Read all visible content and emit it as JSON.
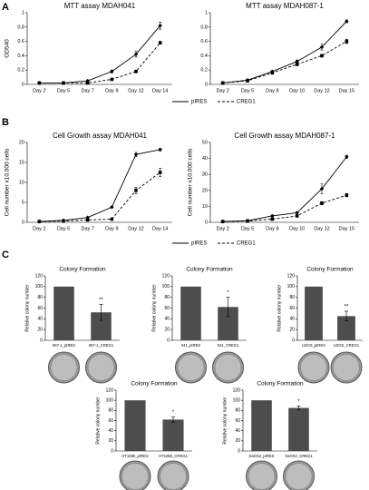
{
  "panel_labels": [
    "A",
    "B",
    "C"
  ],
  "chart_data": [
    {
      "type": "line",
      "title": "MTT assay MDAH041",
      "ylabel": "OD540",
      "categories": [
        "Day 2",
        "Day 5",
        "Day 7",
        "Day 9",
        "Day 12",
        "Day 14"
      ],
      "series": [
        {
          "name": "pIRES",
          "color": "#000000",
          "line_style": "solid",
          "marker": "diamond",
          "values": [
            0.02,
            0.02,
            0.05,
            0.18,
            0.42,
            0.82
          ],
          "errors": [
            0,
            0,
            0,
            0.02,
            0.04,
            0.05
          ]
        },
        {
          "name": "CREG1",
          "color": "#000000",
          "line_style": "dashed",
          "marker": "square",
          "values": [
            0.02,
            0.02,
            0.02,
            0.07,
            0.18,
            0.58
          ],
          "errors": [
            0,
            0,
            0,
            0.01,
            0.02,
            0.02
          ]
        }
      ],
      "ylim": [
        0,
        1
      ],
      "yticks": [
        0,
        0.2,
        0.4,
        0.6,
        0.8,
        1
      ],
      "legend": "bottom"
    },
    {
      "type": "line",
      "title": "MTT assay MDAH087-1",
      "categories": [
        "Day 2",
        "Day 5",
        "Day 8",
        "Day 10",
        "Day 12",
        "Day 15"
      ],
      "series": [
        {
          "name": "pIRES",
          "color": "#000000",
          "line_style": "solid",
          "marker": "diamond",
          "values": [
            0.02,
            0.06,
            0.18,
            0.32,
            0.52,
            0.88
          ],
          "errors": [
            0,
            0,
            0.01,
            0.02,
            0.04,
            0.02
          ]
        },
        {
          "name": "CREG1",
          "color": "#000000",
          "line_style": "dashed",
          "marker": "square",
          "values": [
            0.02,
            0.05,
            0.16,
            0.28,
            0.4,
            0.6
          ],
          "errors": [
            0,
            0,
            0.01,
            0.02,
            0.02,
            0.03
          ]
        }
      ],
      "ylim": [
        0,
        1
      ],
      "yticks": [
        0,
        0.2,
        0.4,
        0.6,
        0.8,
        1
      ]
    },
    {
      "type": "line",
      "title": "Cell Growth assay MDAH041",
      "ylabel": "Cell number x10,000 cells",
      "categories": [
        "Day 2",
        "Day 5",
        "Day 7",
        "Day 9",
        "Day 12",
        "Day 14"
      ],
      "series": [
        {
          "name": "pIRES",
          "color": "#000000",
          "line_style": "solid",
          "marker": "diamond",
          "values": [
            0.2,
            0.5,
            1.2,
            3.8,
            17,
            18.2
          ],
          "errors": [
            0,
            0,
            0.1,
            0.2,
            0.5,
            0.3
          ]
        },
        {
          "name": "CREG1",
          "color": "#000000",
          "line_style": "dashed",
          "marker": "square",
          "values": [
            0.2,
            0.3,
            0.6,
            0.8,
            8,
            12.5
          ],
          "errors": [
            0,
            0,
            0.1,
            0.1,
            0.8,
            1
          ]
        }
      ],
      "ylim": [
        0,
        20
      ],
      "yticks": [
        0,
        5,
        10,
        15,
        20
      ],
      "legend": "bottom"
    },
    {
      "type": "line",
      "title": "Cell Growth assay MDAH087-1",
      "ylabel": "Cell number x10,000 cells",
      "categories": [
        "Day 2",
        "Day 5",
        "Day 8",
        "Day 10",
        "Day 12",
        "Day 15"
      ],
      "series": [
        {
          "name": "pIRES",
          "color": "#000000",
          "line_style": "solid",
          "marker": "diamond",
          "values": [
            0.5,
            1,
            4,
            6,
            21,
            41
          ],
          "errors": [
            0,
            0,
            0.5,
            0.5,
            3,
            1
          ]
        },
        {
          "name": "CREG1",
          "color": "#000000",
          "line_style": "dashed",
          "marker": "square",
          "values": [
            0.5,
            0.8,
            2,
            4,
            12,
            17
          ],
          "errors": [
            0,
            0,
            0.3,
            0.5,
            1,
            1
          ]
        }
      ],
      "ylim": [
        0,
        50
      ],
      "yticks": [
        0,
        10,
        20,
        30,
        40,
        50
      ]
    },
    {
      "type": "bar",
      "title": "Colony Formation",
      "ylabel": "Relative colony number",
      "color": "#4d4d4d",
      "categories": [
        "087-1_pIRES",
        "087-1_CREG1"
      ],
      "values": [
        100,
        52
      ],
      "errors": [
        null,
        15
      ],
      "annotations": [
        null,
        "**"
      ],
      "ylim": [
        0,
        120
      ],
      "yticks": [
        0,
        20,
        40,
        60,
        80,
        100,
        120
      ]
    },
    {
      "type": "bar",
      "title": "Colony Formation",
      "ylabel": "Relative colony number",
      "color": "#4d4d4d",
      "categories": [
        "041_pIRES",
        "041_CREG1"
      ],
      "values": [
        100,
        62
      ],
      "errors": [
        null,
        18
      ],
      "annotations": [
        null,
        "*"
      ],
      "ylim": [
        0,
        120
      ],
      "yticks": [
        0,
        20,
        40,
        60,
        80,
        100,
        120
      ]
    },
    {
      "type": "bar",
      "title": "Colony Formation",
      "ylabel": "Relative colony number",
      "color": "#4d4d4d",
      "categories": [
        "U2OS_pIRES",
        "U2OS_CREG1"
      ],
      "values": [
        100,
        45
      ],
      "errors": [
        null,
        9
      ],
      "annotations": [
        null,
        "**"
      ],
      "ylim": [
        0,
        120
      ],
      "yticks": [
        0,
        20,
        40,
        60,
        80,
        100,
        120
      ]
    },
    {
      "type": "bar",
      "title": "Colony Formation",
      "ylabel": "Relative colony number",
      "color": "#4d4d4d",
      "categories": [
        "HT1080_pIRES",
        "HT1080_CREG1"
      ],
      "values": [
        100,
        62
      ],
      "errors": [
        null,
        5
      ],
      "annotations": [
        null,
        "*"
      ],
      "ylim": [
        0,
        120
      ],
      "yticks": [
        0,
        20,
        40,
        60,
        80,
        100,
        120
      ]
    },
    {
      "type": "bar",
      "title": "Colony Formation",
      "ylabel": "Relative colony number",
      "color": "#4d4d4d",
      "categories": [
        "SaOS2_pIRES",
        "SaOS2_CREG1"
      ],
      "values": [
        100,
        85
      ],
      "errors": [
        null,
        4
      ],
      "annotations": [
        null,
        "*"
      ],
      "ylim": [
        0,
        120
      ],
      "yticks": [
        0,
        20,
        40,
        60,
        80,
        100,
        120
      ]
    }
  ]
}
